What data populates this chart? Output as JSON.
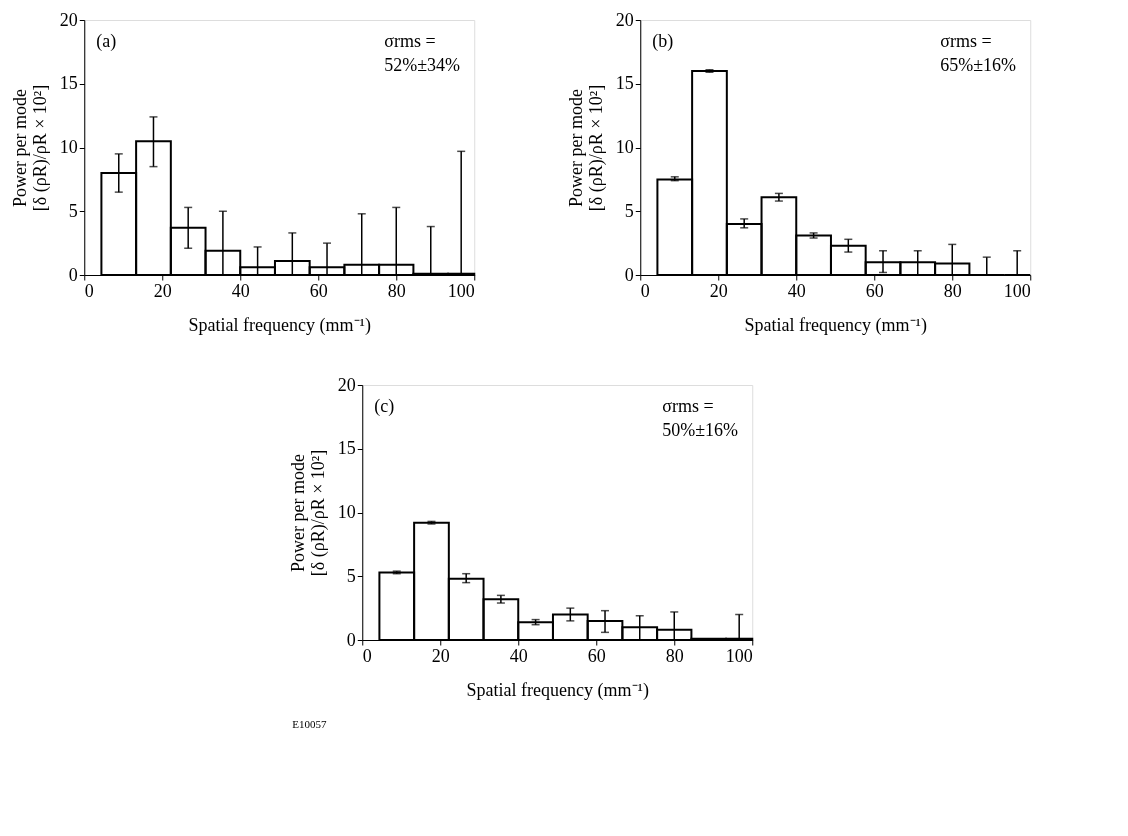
{
  "chart_data": [
    {
      "type": "histogram",
      "xlabel": "Spatial frequency (mm⁻¹)",
      "ylabel": "Power per mode\n[δ (ρR)/ρR × 10²]",
      "annotations": [
        "(a)",
        "σrms =",
        "52%±34%"
      ],
      "bins": [
        4.4,
        13.3,
        22.2,
        31.1,
        40,
        48.9,
        57.8,
        66.7,
        75.6,
        84.4,
        93.3,
        100
      ],
      "values": [
        8.0,
        10.5,
        3.7,
        1.9,
        0.6,
        1.1,
        0.6,
        0.8,
        0.8,
        0.1,
        0.1
      ],
      "errors": [
        [
          6.5,
          9.5
        ],
        [
          8.5,
          12.4
        ],
        [
          2.1,
          5.3
        ],
        [
          0,
          5.0
        ],
        [
          0,
          2.2
        ],
        [
          0,
          3.3
        ],
        [
          0,
          2.5
        ],
        [
          0,
          4.8
        ],
        [
          0,
          5.3
        ],
        [
          0,
          3.8
        ],
        [
          0,
          9.7
        ]
      ],
      "color": "#000000",
      "xlim": [
        0,
        100
      ],
      "ylim": [
        0,
        20
      ],
      "xticks": [
        0,
        20,
        40,
        60,
        80,
        100
      ],
      "yticks": [
        0,
        5,
        10,
        15,
        20
      ],
      "grid": false
    },
    {
      "type": "histogram",
      "xlabel": "Spatial frequency (mm⁻¹)",
      "ylabel": "Power per mode\n[δ (ρR)/ρR × 10²]",
      "annotations": [
        "(b)",
        "σrms =",
        "65%±16%"
      ],
      "bins": [
        4.4,
        13.3,
        22.2,
        31.1,
        40,
        48.9,
        57.8,
        66.7,
        75.6,
        84.4,
        93.3,
        100
      ],
      "values": [
        7.5,
        16.0,
        4.0,
        6.1,
        3.1,
        2.3,
        1.0,
        1.0,
        0.9,
        0,
        0
      ],
      "errors": [
        [
          7.4,
          7.7
        ],
        [
          15.9,
          16.1
        ],
        [
          3.7,
          4.4
        ],
        [
          5.8,
          6.4
        ],
        [
          2.9,
          3.3
        ],
        [
          1.8,
          2.8
        ],
        [
          0.2,
          1.9
        ],
        [
          0,
          1.9
        ],
        [
          0,
          2.4
        ],
        [
          0,
          1.4
        ],
        [
          0,
          1.9
        ]
      ],
      "color": "#000000",
      "xlim": [
        0,
        100
      ],
      "ylim": [
        0,
        20
      ],
      "xticks": [
        0,
        20,
        40,
        60,
        80,
        100
      ],
      "yticks": [
        0,
        5,
        10,
        15,
        20
      ],
      "grid": false
    },
    {
      "type": "histogram",
      "xlabel": "Spatial frequency (mm⁻¹)",
      "ylabel": "Power per mode\n[δ (ρR)/ρR × 10²]",
      "annotations": [
        "(c)",
        "σrms =",
        "50%±16%",
        "E10057"
      ],
      "bins": [
        4.4,
        13.3,
        22.2,
        31.1,
        40,
        48.9,
        57.8,
        66.7,
        75.6,
        84.4,
        93.3,
        100
      ],
      "values": [
        5.3,
        9.2,
        4.8,
        3.2,
        1.4,
        2.0,
        1.5,
        1.0,
        0.8,
        0.1,
        0.1
      ],
      "errors": [
        [
          5.2,
          5.4
        ],
        [
          9.1,
          9.3
        ],
        [
          4.5,
          5.2
        ],
        [
          2.9,
          3.5
        ],
        [
          1.2,
          1.6
        ],
        [
          1.5,
          2.5
        ],
        [
          0.6,
          2.3
        ],
        [
          0,
          1.9
        ],
        [
          0,
          2.2
        ],
        null,
        [
          0,
          2.0
        ]
      ],
      "color": "#000000",
      "xlim": [
        0,
        100
      ],
      "ylim": [
        0,
        20
      ],
      "xticks": [
        0,
        20,
        40,
        60,
        80,
        100
      ],
      "yticks": [
        0,
        5,
        10,
        15,
        20
      ],
      "grid": false
    }
  ]
}
